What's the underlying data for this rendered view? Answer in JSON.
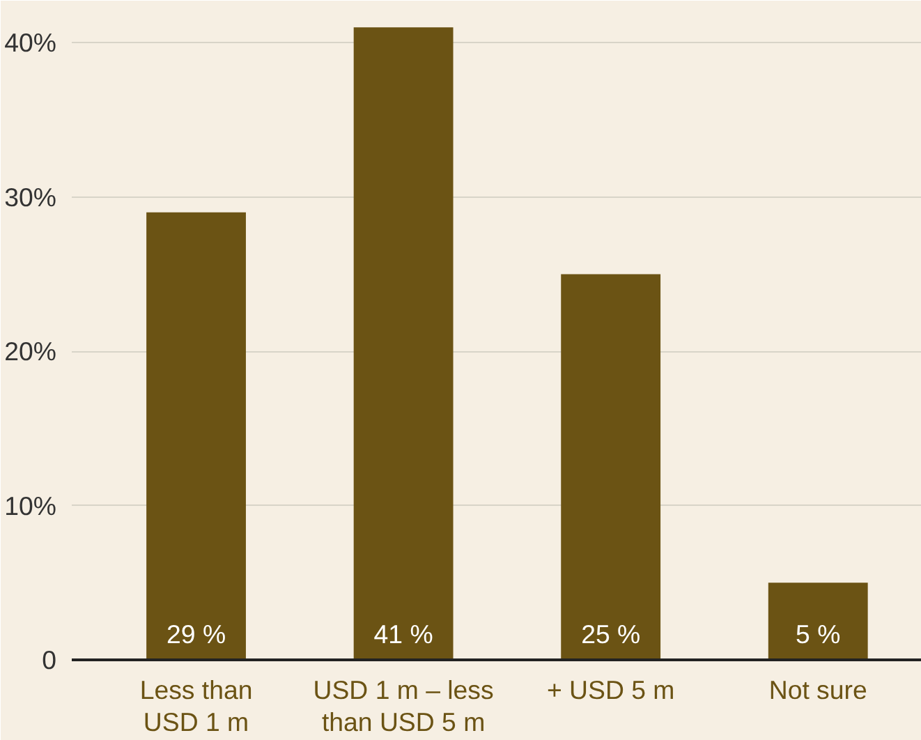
{
  "chart_data": {
    "type": "bar",
    "categories": [
      "Less than\nUSD 1 m",
      "USD 1 m – less\nthan USD 5 m",
      "+ USD 5 m",
      "Not sure"
    ],
    "values": [
      29,
      41,
      25,
      5
    ],
    "value_labels": [
      "29 %",
      "41 %",
      "25 %",
      "5 %"
    ],
    "color": "#6b5314",
    "ylim": [
      0,
      42
    ],
    "yticks": [
      {
        "value": 0,
        "label": "0"
      },
      {
        "value": 10,
        "label": "10%"
      },
      {
        "value": 20,
        "label": "20%"
      },
      {
        "value": 30,
        "label": "30%"
      },
      {
        "value": 40,
        "label": "40%"
      }
    ],
    "grid": "y"
  }
}
